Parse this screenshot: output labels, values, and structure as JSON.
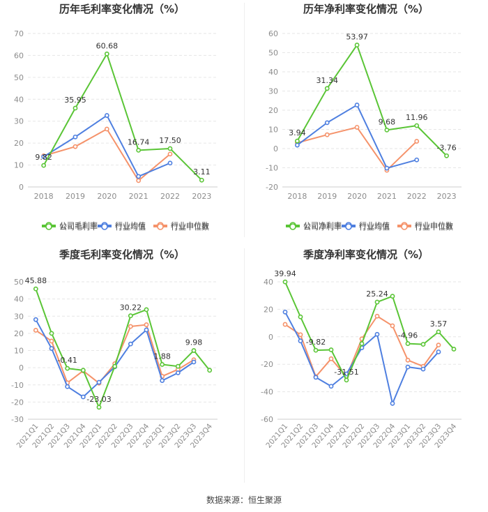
{
  "colors": {
    "green": "#5ac536",
    "blue": "#4e7fe0",
    "orange": "#f5926a",
    "grid": "#e6e6e6",
    "axis_text": "#8c8c8c",
    "title": "#333333"
  },
  "source_text": "数据来源：恒生聚源",
  "chart_data": [
    {
      "type": "line",
      "title": "历年毛利率变化情况（%）",
      "categories": [
        "2018",
        "2019",
        "2020",
        "2021",
        "2022",
        "2023"
      ],
      "ylim": [
        0,
        70
      ],
      "yticks": [
        0,
        10,
        20,
        30,
        40,
        50,
        60,
        70
      ],
      "series": [
        {
          "name": "公司毛利率",
          "color_key": "green",
          "values": [
            9.82,
            35.95,
            60.68,
            16.74,
            17.5,
            3.11
          ]
        },
        {
          "name": "行业均值",
          "color_key": "blue",
          "values": [
            13.8,
            22.8,
            32.6,
            4.8,
            10.9,
            null
          ]
        },
        {
          "name": "行业中位数",
          "color_key": "orange",
          "values": [
            14.2,
            18.4,
            26.4,
            2.9,
            15.0,
            null
          ]
        }
      ],
      "labels": [
        {
          "index": 0,
          "text": "9.82"
        },
        {
          "index": 1,
          "text": "35.95"
        },
        {
          "index": 2,
          "text": "60.68"
        },
        {
          "index": 3,
          "text": "16.74"
        },
        {
          "index": 4,
          "text": "17.50"
        },
        {
          "index": 5,
          "text": "3.11"
        }
      ],
      "rotated_x": false
    },
    {
      "type": "line",
      "title": "历年净利率变化情况（%）",
      "categories": [
        "2018",
        "2019",
        "2020",
        "2021",
        "2022",
        "2023"
      ],
      "ylim": [
        -20,
        60
      ],
      "yticks": [
        -20,
        -10,
        0,
        10,
        20,
        30,
        40,
        50,
        60
      ],
      "series": [
        {
          "name": "公司净利率",
          "color_key": "green",
          "values": [
            3.94,
            31.34,
            53.97,
            9.68,
            11.96,
            -3.76
          ]
        },
        {
          "name": "行业均值",
          "color_key": "blue",
          "values": [
            1.8,
            13.5,
            22.7,
            -10.2,
            -5.9,
            null
          ]
        },
        {
          "name": "行业中位数",
          "color_key": "orange",
          "values": [
            3.0,
            7.2,
            11.1,
            -11.3,
            3.8,
            null
          ]
        }
      ],
      "labels": [
        {
          "index": 0,
          "text": "3.94"
        },
        {
          "index": 1,
          "text": "31.34"
        },
        {
          "index": 2,
          "text": "53.97"
        },
        {
          "index": 3,
          "text": "9.68"
        },
        {
          "index": 4,
          "text": "11.96"
        },
        {
          "index": 5,
          "text": "-3.76"
        }
      ],
      "rotated_x": false
    },
    {
      "type": "line",
      "title": "季度毛利率变化情况（%）",
      "categories": [
        "2021Q1",
        "2021Q2",
        "2021Q3",
        "2021Q4",
        "2022Q1",
        "2022Q2",
        "2022Q3",
        "2022Q4",
        "2023Q1",
        "2023Q2",
        "2023Q3",
        "2023Q4"
      ],
      "ylim": [
        -30,
        50
      ],
      "yticks": [
        -30,
        -20,
        -10,
        0,
        10,
        20,
        30,
        40,
        50
      ],
      "series": [
        {
          "name": "公司毛利率",
          "color_key": "green",
          "values": [
            45.88,
            20.0,
            -0.41,
            -1.5,
            -23.03,
            0.8,
            30.22,
            33.8,
            1.88,
            0.8,
            9.98,
            -1.5
          ]
        },
        {
          "name": "行业均值",
          "color_key": "blue",
          "values": [
            28.0,
            11.2,
            -11.0,
            -17.0,
            -8.5,
            0.5,
            13.8,
            22.0,
            -7.5,
            -3.0,
            3.3,
            null
          ]
        },
        {
          "name": "行业中位数",
          "color_key": "orange",
          "values": [
            21.8,
            15.5,
            -8.8,
            -1.8,
            -9.0,
            2.3,
            24.0,
            25.0,
            -5.0,
            -1.0,
            4.6,
            null
          ]
        }
      ],
      "labels": [
        {
          "index": 0,
          "text": "45.88"
        },
        {
          "index": 2,
          "text": "-0.41"
        },
        {
          "index": 4,
          "text": "-23.03"
        },
        {
          "index": 6,
          "text": "30.22"
        },
        {
          "index": 8,
          "text": "1.88"
        },
        {
          "index": 10,
          "text": "9.98"
        }
      ],
      "rotated_x": true
    },
    {
      "type": "line",
      "title": "季度净利率变化情况（%）",
      "categories": [
        "2021Q1",
        "2021Q2",
        "2021Q3",
        "2021Q4",
        "2022Q1",
        "2022Q2",
        "2022Q3",
        "2022Q4",
        "2023Q1",
        "2023Q2",
        "2023Q3",
        "2023Q4"
      ],
      "ylim": [
        -60,
        40
      ],
      "yticks": [
        -60,
        -40,
        -20,
        0,
        20,
        40
      ],
      "series": [
        {
          "name": "公司净利率",
          "color_key": "green",
          "values": [
            39.94,
            14.5,
            -9.82,
            -9.5,
            -31.51,
            -5.0,
            25.24,
            29.5,
            -4.96,
            -5.5,
            3.57,
            -9.0
          ]
        },
        {
          "name": "行业均值",
          "color_key": "blue",
          "values": [
            18.0,
            -3.0,
            -29.5,
            -36.0,
            -27.0,
            -8.0,
            1.8,
            -48.5,
            -22.0,
            -23.5,
            -11.0,
            null
          ]
        },
        {
          "name": "行业中位数",
          "color_key": "orange",
          "values": [
            9.0,
            1.5,
            -29.0,
            -16.0,
            -29.0,
            -1.5,
            15.0,
            8.0,
            -17.0,
            -21.5,
            -6.0,
            null
          ]
        }
      ],
      "labels": [
        {
          "index": 0,
          "text": "39.94"
        },
        {
          "index": 2,
          "text": "-9.82"
        },
        {
          "index": 4,
          "text": "-31.51"
        },
        {
          "index": 6,
          "text": "25.24"
        },
        {
          "index": 8,
          "text": "-4.96"
        },
        {
          "index": 10,
          "text": "3.57"
        }
      ],
      "rotated_x": true
    }
  ]
}
